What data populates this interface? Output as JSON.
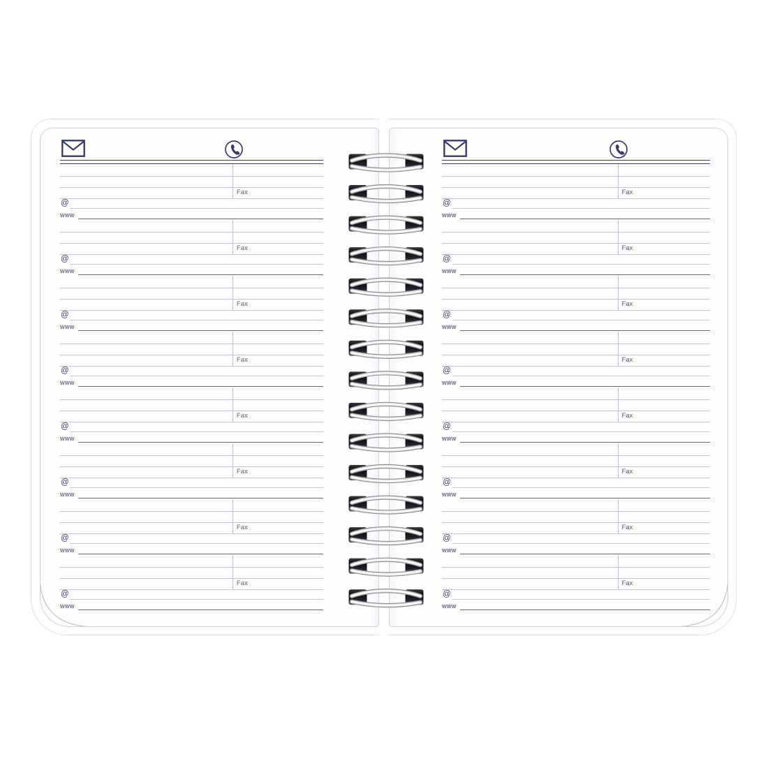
{
  "colors": {
    "accent_navy": "#3c3c6c",
    "row_line": "#c3c3da",
    "separator_line": "#62628e",
    "fax_text": "#5c5c78",
    "page_border": "#cfcfd8",
    "wire_silver": "#dfdfe1"
  },
  "binding": {
    "loop_count": 15
  },
  "pages": [
    {
      "side": "left",
      "icons": {
        "header_left": "envelope-icon",
        "header_right": "phone-icon"
      },
      "blocks": [
        {
          "fax_label": "Fax",
          "at_label": "@",
          "www_label": "www"
        },
        {
          "fax_label": "Fax",
          "at_label": "@",
          "www_label": "www"
        },
        {
          "fax_label": "Fax",
          "at_label": "@",
          "www_label": "www"
        },
        {
          "fax_label": "Fax",
          "at_label": "@",
          "www_label": "www"
        },
        {
          "fax_label": "Fax",
          "at_label": "@",
          "www_label": "www"
        },
        {
          "fax_label": "Fax",
          "at_label": "@",
          "www_label": "www"
        },
        {
          "fax_label": "Fax",
          "at_label": "@",
          "www_label": "www"
        },
        {
          "fax_label": "Fax",
          "at_label": "@",
          "www_label": "www"
        }
      ]
    },
    {
      "side": "right",
      "icons": {
        "header_left": "envelope-icon",
        "header_right": "phone-icon"
      },
      "blocks": [
        {
          "fax_label": "Fax",
          "at_label": "@",
          "www_label": "www"
        },
        {
          "fax_label": "Fax",
          "at_label": "@",
          "www_label": "www"
        },
        {
          "fax_label": "Fax",
          "at_label": "@",
          "www_label": "www"
        },
        {
          "fax_label": "Fax",
          "at_label": "@",
          "www_label": "www"
        },
        {
          "fax_label": "Fax",
          "at_label": "@",
          "www_label": "www"
        },
        {
          "fax_label": "Fax",
          "at_label": "@",
          "www_label": "www"
        },
        {
          "fax_label": "Fax",
          "at_label": "@",
          "www_label": "www"
        },
        {
          "fax_label": "Fax",
          "at_label": "@",
          "www_label": "www"
        }
      ]
    }
  ]
}
